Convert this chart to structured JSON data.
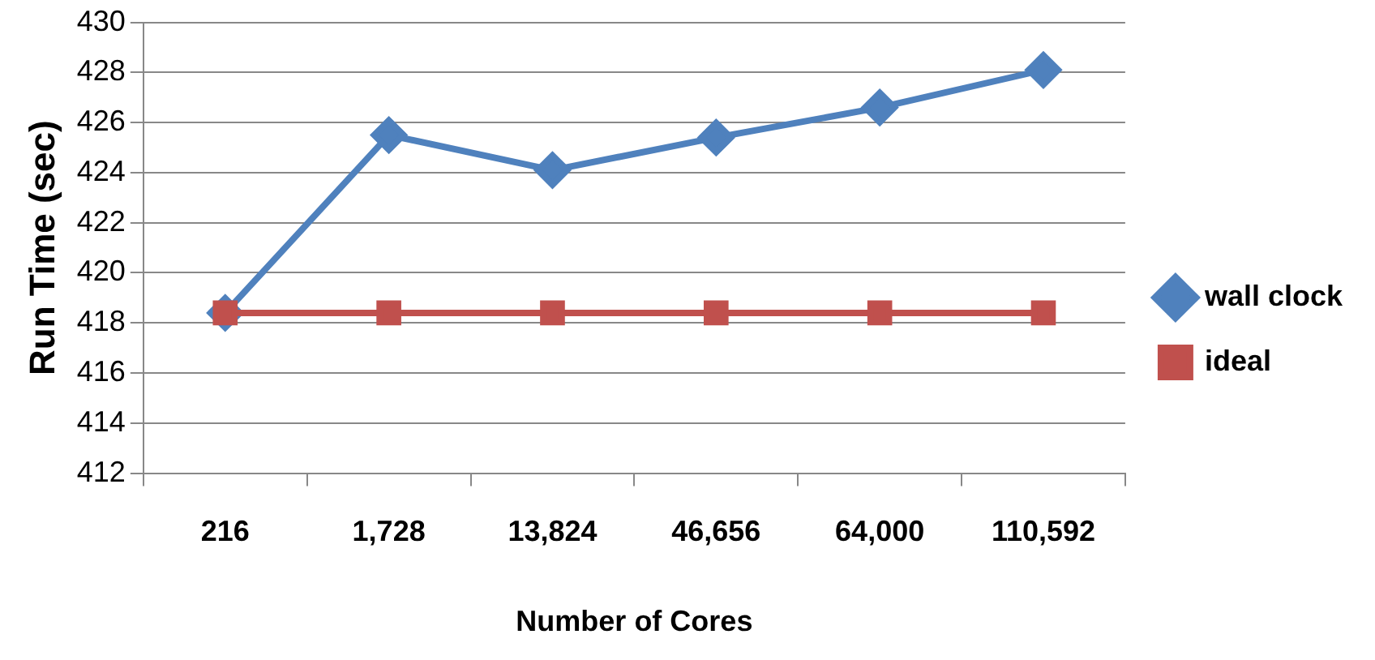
{
  "chart_data": {
    "type": "line",
    "xlabel": "Number of Cores",
    "ylabel": "Run Time (sec)",
    "categories": [
      "216",
      "1,728",
      "13,824",
      "46,656",
      "64,000",
      "110,592"
    ],
    "series": [
      {
        "name": "wall clock",
        "color": "#4f81bd",
        "marker": "diamond",
        "values": [
          418.4,
          425.5,
          424.1,
          425.4,
          426.6,
          428.1
        ]
      },
      {
        "name": "ideal",
        "color": "#c0504d",
        "marker": "square",
        "values": [
          418.4,
          418.4,
          418.4,
          418.4,
          418.4,
          418.4
        ]
      }
    ],
    "ylim": [
      412,
      430
    ],
    "yticks": [
      412,
      414,
      416,
      418,
      420,
      422,
      424,
      426,
      428,
      430
    ],
    "grid": "y",
    "legend": "right"
  }
}
